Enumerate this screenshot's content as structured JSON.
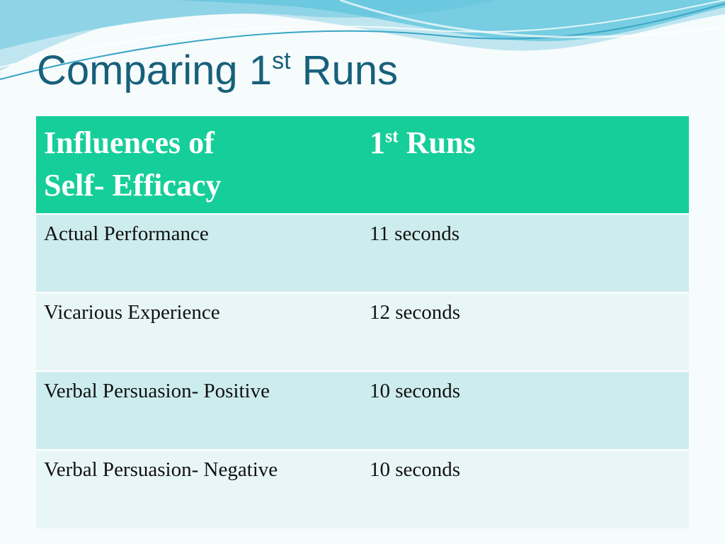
{
  "slide": {
    "title_main": "Comparing 1",
    "title_sup": "st",
    "title_end": " Runs"
  },
  "table": {
    "header": {
      "col1_line1": "Influences of",
      "col1_line2": "Self- Efficacy",
      "col2_main": "1",
      "col2_sup": "st",
      "col2_end": " Runs"
    },
    "rows": [
      {
        "influence": "Actual Performance",
        "run": "11 seconds"
      },
      {
        "influence": "Vicarious Experience",
        "run": "12 seconds"
      },
      {
        "influence": "Verbal Persuasion- Positive",
        "run": "10 seconds"
      },
      {
        "influence": "Verbal Persuasion- Negative",
        "run": "10 seconds"
      }
    ]
  },
  "colors": {
    "title": "#17607a",
    "header_bg": "#16ce99",
    "row_odd_bg": "#cdecee",
    "row_even_bg": "#e8f6f7",
    "wave": "#5fc4dc"
  }
}
